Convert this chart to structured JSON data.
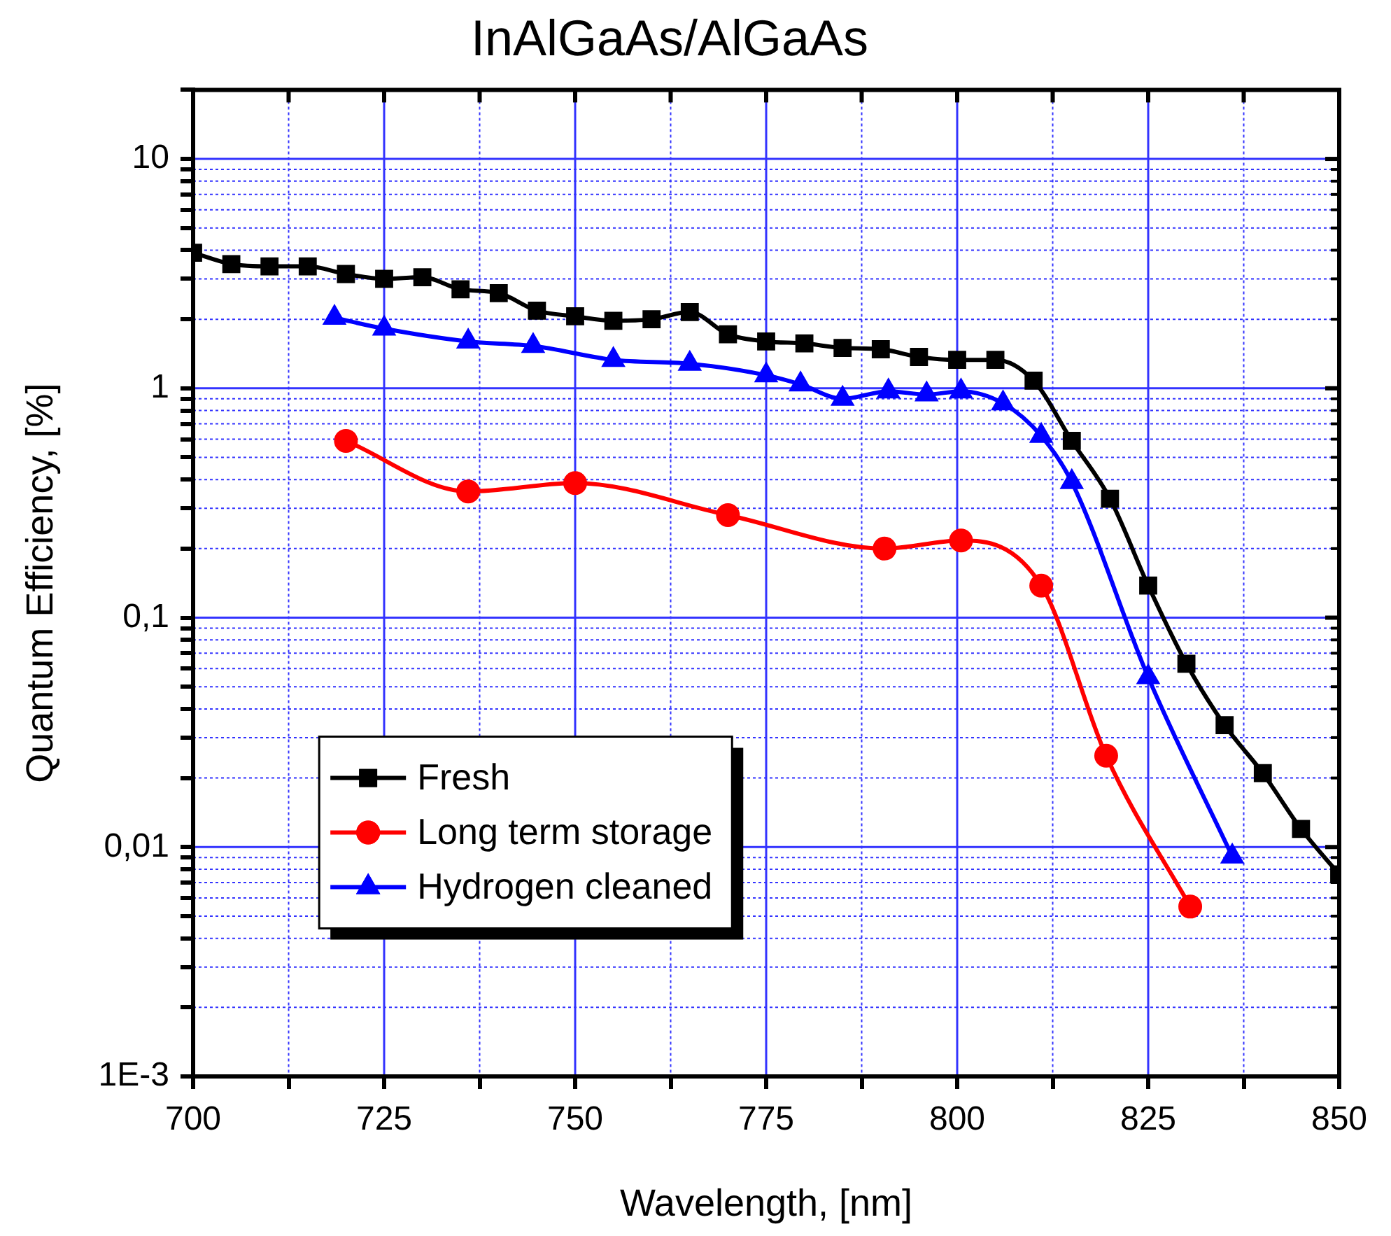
{
  "chart_data": {
    "type": "line",
    "title": "InAlGaAs/AlGaAs",
    "xlabel": "Wavelength, [nm]",
    "ylabel": "Quantum Efficiency, [%]",
    "xlim": [
      700,
      850
    ],
    "xticks": [
      700,
      {
        "value": 712.5,
        "label": null
      },
      725,
      {
        "value": 737.5,
        "label": null
      },
      750,
      {
        "value": 762.5,
        "label": null
      },
      775,
      {
        "value": 787.5,
        "label": null
      },
      800,
      {
        "value": 812.5,
        "label": null
      },
      825,
      {
        "value": 837.5,
        "label": null
      },
      850
    ],
    "ylim": [
      0.001,
      20
    ],
    "yticks": [
      {
        "value": 0.001,
        "label": "1E-3"
      },
      {
        "value": 0.002,
        "label": null
      },
      {
        "value": 0.003,
        "label": null
      },
      {
        "value": 0.004,
        "label": null
      },
      {
        "value": 0.005,
        "label": null
      },
      {
        "value": 0.006,
        "label": null
      },
      {
        "value": 0.007,
        "label": null
      },
      {
        "value": 0.008,
        "label": null
      },
      {
        "value": 0.009,
        "label": null
      },
      {
        "value": 0.01,
        "label": "0,01"
      },
      {
        "value": 0.02,
        "label": null
      },
      {
        "value": 0.03,
        "label": null
      },
      {
        "value": 0.04,
        "label": null
      },
      {
        "value": 0.05,
        "label": null
      },
      {
        "value": 0.06,
        "label": null
      },
      {
        "value": 0.07,
        "label": null
      },
      {
        "value": 0.08,
        "label": null
      },
      {
        "value": 0.09,
        "label": null
      },
      {
        "value": 0.1,
        "label": "0,1"
      },
      {
        "value": 0.2,
        "label": null
      },
      {
        "value": 0.3,
        "label": null
      },
      {
        "value": 0.4,
        "label": null
      },
      {
        "value": 0.5,
        "label": null
      },
      {
        "value": 0.6,
        "label": null
      },
      {
        "value": 0.7,
        "label": null
      },
      {
        "value": 0.8,
        "label": null
      },
      {
        "value": 0.9,
        "label": null
      },
      1,
      {
        "value": 2,
        "label": null
      },
      {
        "value": 3,
        "label": null
      },
      {
        "value": 4,
        "label": null
      },
      {
        "value": 5,
        "label": null
      },
      {
        "value": 6,
        "label": null
      },
      {
        "value": 7,
        "label": null
      },
      {
        "value": 8,
        "label": null
      },
      {
        "value": 9,
        "label": null
      },
      10,
      {
        "value": 20,
        "label": null
      }
    ],
    "log": "y",
    "grid": true,
    "legend": "bottom left",
    "series": [
      {
        "name": "Fresh",
        "color": "#000000",
        "marker": "square",
        "x": [
          700,
          705,
          710,
          715,
          720,
          725,
          730,
          735,
          740,
          745,
          750,
          755,
          760,
          765,
          770,
          775,
          780,
          785,
          790,
          795,
          800,
          805,
          810,
          815,
          820,
          825,
          830,
          835,
          840,
          845,
          850
        ],
        "values": [
          3.9,
          3.48,
          3.4,
          3.4,
          3.15,
          3.0,
          3.05,
          2.7,
          2.6,
          2.18,
          2.06,
          1.97,
          2.0,
          2.15,
          1.72,
          1.6,
          1.57,
          1.5,
          1.48,
          1.37,
          1.33,
          1.33,
          1.08,
          0.59,
          0.33,
          0.138,
          0.063,
          0.034,
          0.021,
          0.012,
          0.0076
        ]
      },
      {
        "name": "Long term storage",
        "color": "#ff0000",
        "marker": "circle",
        "x": [
          720,
          736,
          750,
          770,
          790.5,
          800.5,
          811,
          819.5,
          830.5
        ],
        "values": [
          0.59,
          0.355,
          0.386,
          0.28,
          0.2,
          0.217,
          0.138,
          0.025,
          0.0055
        ]
      },
      {
        "name": "Hydrogen cleaned",
        "color": "#0000ff",
        "marker": "triangle",
        "x": [
          718.5,
          725,
          736,
          744.5,
          755,
          765,
          775,
          779.5,
          785,
          791,
          796,
          800.5,
          806,
          811,
          815,
          825,
          836
        ],
        "values": [
          2.03,
          1.82,
          1.6,
          1.53,
          1.33,
          1.28,
          1.14,
          1.04,
          0.9,
          0.97,
          0.94,
          0.97,
          0.86,
          0.62,
          0.39,
          0.055,
          0.0091
        ]
      }
    ]
  }
}
